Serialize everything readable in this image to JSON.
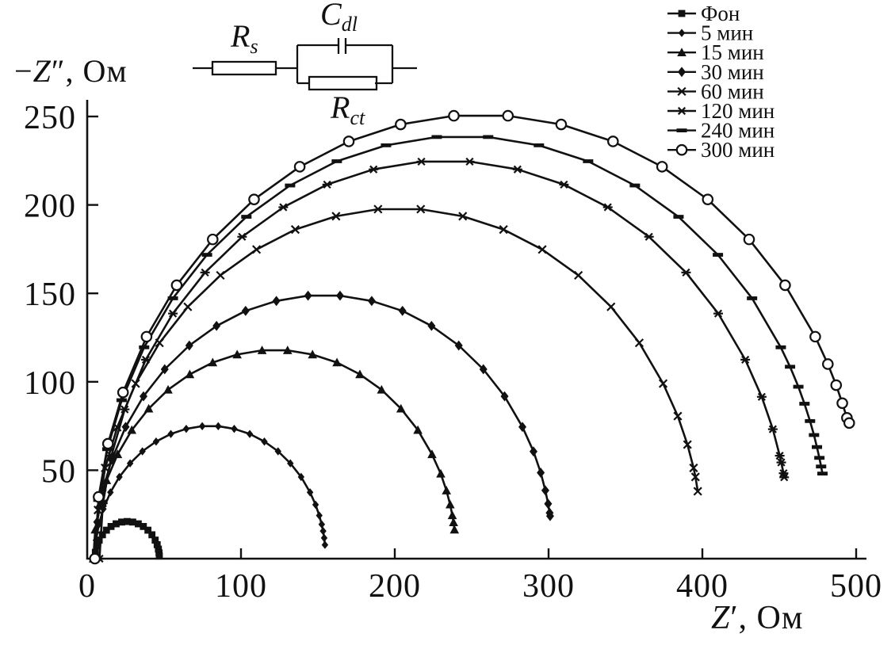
{
  "figure": {
    "background": "#ffffff",
    "ink": "#111111"
  },
  "axis_labels": {
    "y_minus": "−",
    "y_symbol": "Z",
    "y_prime": "″",
    "y_unit": ", Ом",
    "x_symbol": "Z",
    "x_prime": "′",
    "x_unit": ", Ом"
  },
  "circuit": {
    "rs": {
      "main": "R",
      "sub": "s"
    },
    "cdl": {
      "main": "C",
      "sub": "dl"
    },
    "rct": {
      "main": "R",
      "sub": "ct"
    }
  },
  "chart_data": {
    "type": "line",
    "title": "",
    "xlabel": "Z', Ом",
    "ylabel": "−Z'', Ом",
    "xlim": [
      0,
      507
    ],
    "ylim": [
      0,
      259
    ],
    "x_ticks": [
      0,
      100,
      200,
      300,
      400,
      500
    ],
    "y_ticks": [
      50,
      100,
      150,
      200,
      250
    ],
    "grid": false,
    "legend_position": "top-right",
    "series": [
      {
        "name": "Фон",
        "id": "fon",
        "marker": "square",
        "points": [
          [
            5,
            0
          ],
          [
            5.3,
            3.6
          ],
          [
            6.3,
            7.2
          ],
          [
            7.8,
            10.5
          ],
          [
            9.9,
            13.5
          ],
          [
            12.5,
            16.1
          ],
          [
            15.5,
            18.2
          ],
          [
            18.8,
            19.7
          ],
          [
            22.4,
            20.7
          ],
          [
            26,
            21
          ],
          [
            29.6,
            20.7
          ],
          [
            33.2,
            19.7
          ],
          [
            36.5,
            18.2
          ],
          [
            39.5,
            16.1
          ],
          [
            42.1,
            13.5
          ],
          [
            44.2,
            10.5
          ],
          [
            45.5,
            7.9
          ],
          [
            46.3,
            5.4
          ],
          [
            46.7,
            3.3
          ],
          [
            46.9,
            1.5
          ]
        ]
      },
      {
        "name": "5 мин",
        "id": "5-min",
        "marker": "small-diamond",
        "points": [
          [
            5,
            0
          ],
          [
            5.7,
            10.4
          ],
          [
            7.6,
            19.4
          ],
          [
            10.5,
            28.1
          ],
          [
            15.1,
            37.5
          ],
          [
            20.9,
            46.2
          ],
          [
            27.9,
            53.9
          ],
          [
            35.9,
            60.7
          ],
          [
            44.8,
            66.2
          ],
          [
            54.4,
            70.5
          ],
          [
            64.4,
            73.4
          ],
          [
            74.8,
            74.9
          ],
          [
            85.2,
            74.9
          ],
          [
            95.6,
            73.4
          ],
          [
            105.7,
            70.5
          ],
          [
            115.2,
            66.2
          ],
          [
            124.1,
            60.7
          ],
          [
            132.1,
            53.9
          ],
          [
            139.1,
            46.2
          ],
          [
            144.9,
            37.5
          ],
          [
            148.5,
            30.5
          ],
          [
            150.9,
            24.4
          ],
          [
            152.5,
            19.4
          ],
          [
            153.4,
            15.6
          ],
          [
            154.1,
            11.7
          ],
          [
            154.6,
            7.8
          ]
        ]
      },
      {
        "name": "15 мин",
        "id": "15-min",
        "marker": "triangle",
        "points": [
          [
            4,
            0
          ],
          [
            5.2,
            16.4
          ],
          [
            8,
            30.6
          ],
          [
            12.6,
            44.3
          ],
          [
            19.8,
            59
          ],
          [
            29,
            72.7
          ],
          [
            40,
            84.8
          ],
          [
            52.6,
            95.5
          ],
          [
            66.7,
            104.2
          ],
          [
            81.6,
            110.9
          ],
          [
            97.5,
            115.4
          ],
          [
            113.7,
            117.8
          ],
          [
            130.3,
            117.8
          ],
          [
            146.5,
            115.4
          ],
          [
            162.4,
            110.9
          ],
          [
            177.3,
            104.2
          ],
          [
            191.4,
            95.5
          ],
          [
            204,
            84.8
          ],
          [
            215,
            72.7
          ],
          [
            224.2,
            59
          ],
          [
            229.9,
            48
          ],
          [
            233.6,
            38.5
          ],
          [
            236,
            30.6
          ],
          [
            237.4,
            24.5
          ],
          [
            238.2,
            20.5
          ],
          [
            238.8,
            16.4
          ]
        ]
      },
      {
        "name": "30 мин",
        "id": "30-min",
        "marker": "diamond",
        "points": [
          [
            5,
            0
          ],
          [
            6.5,
            20.7
          ],
          [
            10.1,
            38.6
          ],
          [
            15.9,
            55.9
          ],
          [
            25,
            74.5
          ],
          [
            36.6,
            91.8
          ],
          [
            50.4,
            107.1
          ],
          [
            66.4,
            120.5
          ],
          [
            84.1,
            131.6
          ],
          [
            103,
            140.1
          ],
          [
            123,
            145.7
          ],
          [
            143.6,
            148.7
          ],
          [
            164.4,
            148.7
          ],
          [
            185,
            145.7
          ],
          [
            205,
            140.1
          ],
          [
            223.9,
            131.6
          ],
          [
            241.6,
            120.5
          ],
          [
            257.6,
            107.1
          ],
          [
            271.4,
            91.8
          ],
          [
            283,
            74.5
          ],
          [
            290.2,
            60.6
          ],
          [
            294.9,
            48.6
          ],
          [
            297.9,
            38.6
          ],
          [
            299.7,
            31
          ],
          [
            300.7,
            25.9
          ],
          [
            301,
            24.1
          ]
        ]
      },
      {
        "name": "60 мин",
        "id": "60-min",
        "marker": "x",
        "points": [
          [
            5,
            0
          ],
          [
            7,
            27.5
          ],
          [
            11.7,
            51.3
          ],
          [
            19.5,
            74.3
          ],
          [
            31.5,
            99
          ],
          [
            47,
            122
          ],
          [
            65.4,
            142.4
          ],
          [
            86.6,
            160.2
          ],
          [
            110.1,
            174.8
          ],
          [
            135.3,
            186.1
          ],
          [
            161.8,
            193.6
          ],
          [
            189.1,
            197.6
          ],
          [
            216.9,
            197.6
          ],
          [
            244.2,
            193.6
          ],
          [
            270.7,
            186.1
          ],
          [
            295.9,
            174.8
          ],
          [
            319.4,
            160.2
          ],
          [
            340.6,
            142.4
          ],
          [
            359,
            122
          ],
          [
            374.5,
            99
          ],
          [
            384,
            80.6
          ],
          [
            390.3,
            64.5
          ],
          [
            394.3,
            51.3
          ],
          [
            395.5,
            46.2
          ],
          [
            397,
            38.1
          ]
        ]
      },
      {
        "name": "120 мин",
        "id": "120-min",
        "marker": "asterisk",
        "points": [
          [
            8,
            0
          ],
          [
            10.2,
            31.3
          ],
          [
            15.7,
            58.2
          ],
          [
            24.4,
            84.4
          ],
          [
            38.1,
            112.5
          ],
          [
            55.7,
            138.6
          ],
          [
            76.6,
            161.8
          ],
          [
            100.7,
            182
          ],
          [
            127.5,
            198.7
          ],
          [
            156,
            211.5
          ],
          [
            186.2,
            220.1
          ],
          [
            217.3,
            224.5
          ],
          [
            248.7,
            224.5
          ],
          [
            279.8,
            220.1
          ],
          [
            310,
            211.5
          ],
          [
            338.5,
            198.7
          ],
          [
            365.3,
            182
          ],
          [
            389.4,
            161.8
          ],
          [
            410.3,
            138.6
          ],
          [
            427.9,
            112.5
          ],
          [
            438.6,
            91.5
          ],
          [
            445.8,
            73.2
          ],
          [
            450.3,
            58.2
          ],
          [
            451.3,
            54.4
          ],
          [
            452.8,
            48.3
          ],
          [
            453.2,
            46
          ]
        ]
      },
      {
        "name": "240 мин",
        "id": "240-min",
        "marker": "dash",
        "points": [
          [
            5,
            0
          ],
          [
            7.3,
            33.2
          ],
          [
            13.1,
            61.9
          ],
          [
            22.4,
            89.6
          ],
          [
            37,
            119.5
          ],
          [
            55.7,
            147.2
          ],
          [
            77.9,
            171.8
          ],
          [
            103.5,
            193.3
          ],
          [
            131.9,
            211
          ],
          [
            162.3,
            224.7
          ],
          [
            194.3,
            233.7
          ],
          [
            227.3,
            238.4
          ],
          [
            260.7,
            238.4
          ],
          [
            293.7,
            233.7
          ],
          [
            325.7,
            224.7
          ],
          [
            356.1,
            211
          ],
          [
            384.5,
            193.3
          ],
          [
            410.1,
            171.8
          ],
          [
            432.3,
            147.2
          ],
          [
            451,
            119.5
          ],
          [
            457,
            108.5
          ],
          [
            462.4,
            97.2
          ],
          [
            466.4,
            87.6
          ],
          [
            470,
            77.8
          ],
          [
            472.6,
            69.9
          ],
          [
            474.5,
            63.1
          ],
          [
            476.1,
            57
          ],
          [
            477.2,
            52.1
          ],
          [
            478.1,
            48.1
          ]
        ]
      },
      {
        "name": "300 мин",
        "id": "300-min",
        "marker": "circle-open",
        "points": [
          [
            5,
            0
          ],
          [
            7.4,
            34.9
          ],
          [
            13.5,
            65
          ],
          [
            23.3,
            94
          ],
          [
            38.6,
            125.5
          ],
          [
            58.2,
            154.6
          ],
          [
            81.6,
            180.5
          ],
          [
            108.5,
            203.1
          ],
          [
            138.2,
            221.6
          ],
          [
            170.1,
            235.9
          ],
          [
            203.8,
            245.5
          ],
          [
            238.4,
            250.4
          ],
          [
            273.6,
            250.4
          ],
          [
            308.2,
            245.5
          ],
          [
            341.9,
            235.9
          ],
          [
            373.8,
            221.6
          ],
          [
            403.5,
            203.1
          ],
          [
            430.4,
            180.5
          ],
          [
            453.8,
            154.6
          ],
          [
            473.4,
            125.5
          ],
          [
            481.6,
            110
          ],
          [
            487,
            98.1
          ],
          [
            491,
            87.9
          ],
          [
            494,
            79.6
          ],
          [
            495.5,
            76.7
          ]
        ]
      }
    ]
  }
}
